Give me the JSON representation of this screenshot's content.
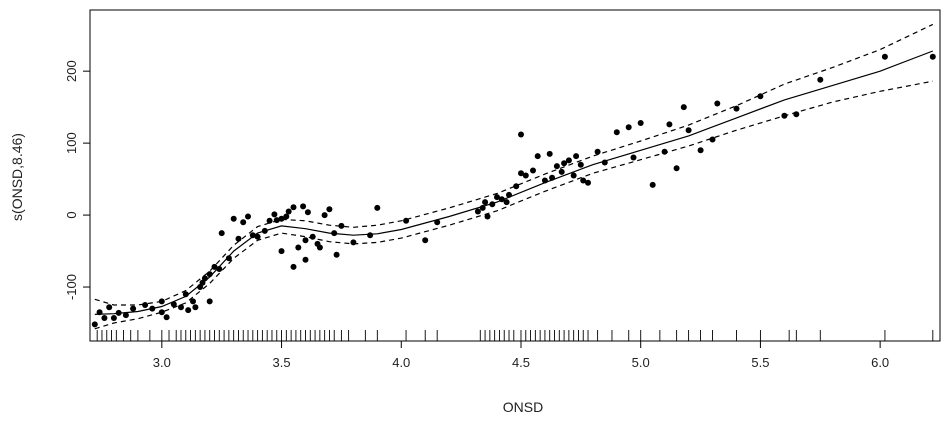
{
  "chart_data": {
    "type": "scatter",
    "title": "",
    "xlabel": "ONSD",
    "ylabel": "s(ONSD,8.46)",
    "xlim": [
      2.7,
      6.25
    ],
    "ylim": [
      -175,
      285
    ],
    "x_ticks": [
      3.0,
      3.5,
      4.0,
      4.5,
      5.0,
      5.5,
      6.0
    ],
    "x_tick_labels": [
      "3.0",
      "3.5",
      "4.0",
      "4.5",
      "5.0",
      "5.5",
      "6.0"
    ],
    "y_ticks": [
      -100,
      0,
      100,
      200
    ],
    "y_tick_labels": [
      "-100",
      "0",
      "100",
      "200"
    ],
    "grid": false,
    "legend": "none",
    "colors": {
      "points": "#000000",
      "lines": "#000000",
      "axes": "#000000"
    },
    "series": [
      {
        "kind": "smooth-fit",
        "style": "solid",
        "x": [
          2.72,
          2.8,
          2.9,
          3.0,
          3.1,
          3.2,
          3.3,
          3.4,
          3.5,
          3.6,
          3.7,
          3.8,
          3.9,
          4.0,
          4.2,
          4.4,
          4.6,
          4.8,
          5.0,
          5.2,
          5.4,
          5.6,
          5.8,
          6.0,
          6.22
        ],
        "y": [
          -138,
          -137,
          -134,
          -127,
          -113,
          -86,
          -50,
          -25,
          -15,
          -19,
          -25,
          -28,
          -26,
          -20,
          -2,
          18,
          45,
          70,
          90,
          110,
          135,
          160,
          180,
          200,
          228
        ]
      },
      {
        "kind": "upper-confidence-band",
        "style": "dashed",
        "x": [
          2.72,
          2.8,
          2.9,
          3.0,
          3.1,
          3.2,
          3.3,
          3.4,
          3.5,
          3.6,
          3.7,
          3.8,
          3.9,
          4.0,
          4.2,
          4.4,
          4.6,
          4.8,
          5.0,
          5.2,
          5.4,
          5.6,
          5.8,
          6.0,
          6.22
        ],
        "y": [
          -117,
          -125,
          -125,
          -120,
          -105,
          -78,
          -42,
          -16,
          -6,
          -8,
          -14,
          -17,
          -14,
          -8,
          10,
          30,
          57,
          82,
          103,
          125,
          152,
          182,
          205,
          230,
          265
        ]
      },
      {
        "kind": "lower-confidence-band",
        "style": "dashed",
        "x": [
          2.72,
          2.8,
          2.9,
          3.0,
          3.1,
          3.2,
          3.3,
          3.4,
          3.5,
          3.6,
          3.7,
          3.8,
          3.9,
          4.0,
          4.2,
          4.4,
          4.6,
          4.8,
          5.0,
          5.2,
          5.4,
          5.6,
          5.8,
          6.0,
          6.22
        ],
        "y": [
          -158,
          -150,
          -144,
          -135,
          -122,
          -95,
          -60,
          -35,
          -25,
          -30,
          -37,
          -40,
          -38,
          -32,
          -14,
          6,
          33,
          58,
          77,
          96,
          118,
          138,
          157,
          172,
          186
        ]
      }
    ],
    "points": [
      [
        2.72,
        -152
      ],
      [
        2.74,
        -135
      ],
      [
        2.76,
        -143
      ],
      [
        2.78,
        -128
      ],
      [
        2.8,
        -143
      ],
      [
        2.82,
        -136
      ],
      [
        2.85,
        -139
      ],
      [
        2.88,
        -130
      ],
      [
        2.93,
        -125
      ],
      [
        2.96,
        -130
      ],
      [
        3.0,
        -120
      ],
      [
        3.0,
        -135
      ],
      [
        3.02,
        -142
      ],
      [
        3.05,
        -124
      ],
      [
        3.08,
        -128
      ],
      [
        3.1,
        -110
      ],
      [
        3.11,
        -132
      ],
      [
        3.13,
        -120
      ],
      [
        3.14,
        -128
      ],
      [
        3.16,
        -100
      ],
      [
        3.17,
        -94
      ],
      [
        3.18,
        -88
      ],
      [
        3.2,
        -82
      ],
      [
        3.2,
        -120
      ],
      [
        3.22,
        -72
      ],
      [
        3.24,
        -75
      ],
      [
        3.25,
        -25
      ],
      [
        3.28,
        -60
      ],
      [
        3.3,
        -5
      ],
      [
        3.32,
        -33
      ],
      [
        3.34,
        -10
      ],
      [
        3.36,
        -2
      ],
      [
        3.38,
        -28
      ],
      [
        3.4,
        -30
      ],
      [
        3.43,
        -22
      ],
      [
        3.45,
        -8
      ],
      [
        3.47,
        1
      ],
      [
        3.48,
        -7
      ],
      [
        3.5,
        -5
      ],
      [
        3.5,
        -50
      ],
      [
        3.52,
        -2
      ],
      [
        3.53,
        5
      ],
      [
        3.55,
        11
      ],
      [
        3.55,
        -72
      ],
      [
        3.57,
        -45
      ],
      [
        3.59,
        12
      ],
      [
        3.6,
        -35
      ],
      [
        3.6,
        -62
      ],
      [
        3.61,
        4
      ],
      [
        3.63,
        -30
      ],
      [
        3.65,
        -40
      ],
      [
        3.66,
        -45
      ],
      [
        3.68,
        0
      ],
      [
        3.7,
        8
      ],
      [
        3.72,
        -25
      ],
      [
        3.73,
        -55
      ],
      [
        3.75,
        -15
      ],
      [
        3.8,
        -38
      ],
      [
        3.87,
        -28
      ],
      [
        3.9,
        10
      ],
      [
        4.02,
        -8
      ],
      [
        4.1,
        -35
      ],
      [
        4.15,
        -10
      ],
      [
        4.32,
        5
      ],
      [
        4.34,
        10
      ],
      [
        4.35,
        18
      ],
      [
        4.36,
        -2
      ],
      [
        4.38,
        15
      ],
      [
        4.4,
        25
      ],
      [
        4.42,
        22
      ],
      [
        4.44,
        18
      ],
      [
        4.45,
        28
      ],
      [
        4.48,
        40
      ],
      [
        4.5,
        58
      ],
      [
        4.5,
        112
      ],
      [
        4.52,
        55
      ],
      [
        4.55,
        62
      ],
      [
        4.57,
        82
      ],
      [
        4.6,
        48
      ],
      [
        4.62,
        85
      ],
      [
        4.63,
        52
      ],
      [
        4.65,
        68
      ],
      [
        4.67,
        60
      ],
      [
        4.68,
        72
      ],
      [
        4.7,
        76
      ],
      [
        4.72,
        55
      ],
      [
        4.73,
        82
      ],
      [
        4.75,
        70
      ],
      [
        4.76,
        48
      ],
      [
        4.78,
        45
      ],
      [
        4.82,
        88
      ],
      [
        4.85,
        73
      ],
      [
        4.9,
        115
      ],
      [
        4.95,
        122
      ],
      [
        4.97,
        80
      ],
      [
        5.0,
        128
      ],
      [
        5.05,
        42
      ],
      [
        5.1,
        88
      ],
      [
        5.12,
        126
      ],
      [
        5.15,
        65
      ],
      [
        5.18,
        150
      ],
      [
        5.2,
        118
      ],
      [
        5.25,
        90
      ],
      [
        5.3,
        105
      ],
      [
        5.32,
        155
      ],
      [
        5.4,
        148
      ],
      [
        5.5,
        165
      ],
      [
        5.6,
        138
      ],
      [
        5.65,
        140
      ],
      [
        5.75,
        188
      ],
      [
        6.02,
        220
      ],
      [
        6.22,
        220
      ]
    ],
    "rug_x": [
      2.73,
      2.75,
      2.77,
      2.79,
      2.81,
      2.84,
      2.87,
      2.9,
      2.95,
      3.0,
      3.03,
      3.06,
      3.08,
      3.1,
      3.12,
      3.14,
      3.16,
      3.18,
      3.2,
      3.22,
      3.24,
      3.26,
      3.28,
      3.3,
      3.32,
      3.34,
      3.36,
      3.38,
      3.4,
      3.42,
      3.44,
      3.46,
      3.48,
      3.5,
      3.52,
      3.54,
      3.56,
      3.58,
      3.6,
      3.62,
      3.64,
      3.66,
      3.68,
      3.7,
      3.72,
      3.75,
      3.78,
      3.85,
      3.9,
      4.02,
      4.1,
      4.15,
      4.33,
      4.35,
      4.37,
      4.39,
      4.41,
      4.43,
      4.45,
      4.47,
      4.5,
      4.52,
      4.54,
      4.56,
      4.58,
      4.6,
      4.62,
      4.64,
      4.66,
      4.68,
      4.7,
      4.72,
      4.74,
      4.76,
      4.78,
      4.82,
      4.88,
      4.95,
      5.0,
      5.08,
      5.15,
      5.2,
      5.25,
      5.3,
      5.4,
      5.5,
      5.62,
      5.65,
      5.75,
      6.02,
      6.22
    ]
  }
}
